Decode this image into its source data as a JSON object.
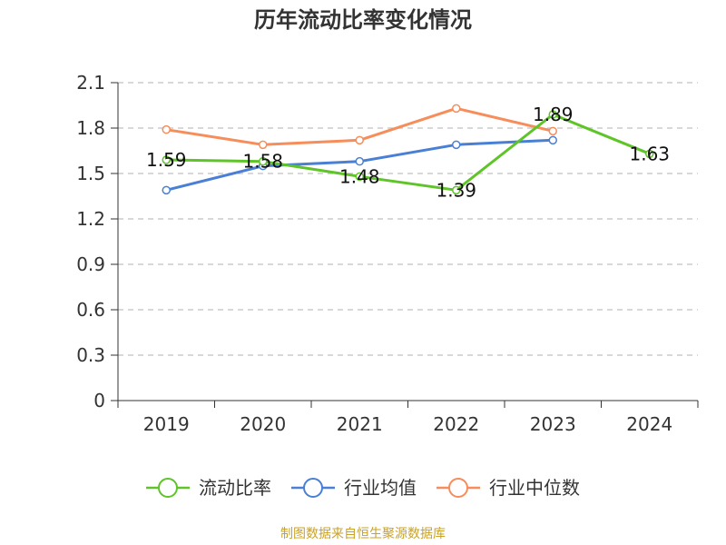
{
  "chart_data": {
    "type": "line",
    "title": "历年流动比率变化情况",
    "categories": [
      "2019",
      "2020",
      "2021",
      "2022",
      "2023",
      "2024"
    ],
    "ylim": [
      0,
      2.1
    ],
    "yticks": [
      "0",
      "0.3",
      "0.6",
      "0.9",
      "1.2",
      "1.5",
      "1.8",
      "2.1"
    ],
    "grid": true,
    "legend_position": "bottom",
    "series": [
      {
        "name": "流动比率",
        "color": "#5ec428",
        "values": [
          1.59,
          1.58,
          1.48,
          1.39,
          1.89,
          1.63
        ],
        "labels": [
          "1.59",
          "1.58",
          "1.48",
          "1.39",
          "1.89",
          "1.63"
        ]
      },
      {
        "name": "行业均值",
        "color": "#4a7fd6",
        "values": [
          1.39,
          1.55,
          1.58,
          1.69,
          1.72,
          null
        ]
      },
      {
        "name": "行业中位数",
        "color": "#f68d5a",
        "values": [
          1.79,
          1.69,
          1.72,
          1.93,
          1.78,
          null
        ]
      }
    ]
  },
  "source_note": "制图数据来自恒生聚源数据库"
}
